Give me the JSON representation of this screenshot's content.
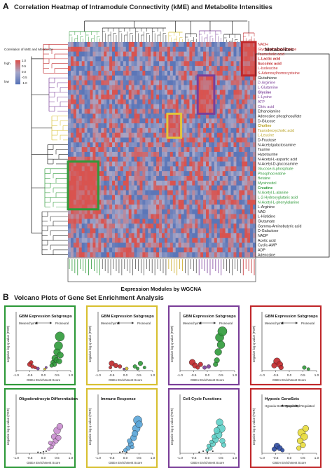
{
  "panel_a": {
    "label": "A",
    "title": "Correlation Heatmap of Intramodule Connectivity (kME) and Metabolite Intensities",
    "legend_title": "Correlation of kME and Metabolite",
    "legend_high": "high",
    "legend_low": "low",
    "legend_ticks": [
      "1.0",
      "0.5",
      "0.0",
      "-0.5",
      "-1.0"
    ],
    "metabolites_header": "Metabolites",
    "xlabel": "Expression Modules by WGCNA",
    "colors": {
      "red": "#c0282b",
      "purple": "#7b3f99",
      "yellow": "#d8c032",
      "green": "#2f9a3a",
      "heat_high": "#d9534f",
      "heat_low": "#5b76b8",
      "heat_mid": "#a7a8c9"
    }
  },
  "panel_b": {
    "label": "B",
    "title": "Volcano Plots of Gene Set Enrichment Analysis"
  },
  "chart_data": [
    {
      "type": "heatmap",
      "title": "Correlation Heatmap of Intramodule Connectivity (kME) and Metabolite Intensities",
      "xlabel": "Expression Modules by WGCNA",
      "rows": [
        {
          "name": "NADH",
          "group": "red"
        },
        {
          "name": "Glycerophosphocholine",
          "group": "red"
        },
        {
          "name": "Taurocholic acid",
          "group": "red"
        },
        {
          "name": "L-Lactic acid",
          "group": "red",
          "bold": true
        },
        {
          "name": "Succinic acid",
          "group": "red",
          "bold": true
        },
        {
          "name": "L-Isoleucine",
          "group": "red"
        },
        {
          "name": "S-Adenosylhomocysteine",
          "group": "red"
        },
        {
          "name": "Glutathione",
          "group": "none"
        },
        {
          "name": "D-Arginine",
          "group": "purple"
        },
        {
          "name": "L-Glutamine",
          "group": "purple"
        },
        {
          "name": "Glycine",
          "group": "purple",
          "bold": true
        },
        {
          "name": "L-Lysine",
          "group": "purple"
        },
        {
          "name": "ATP",
          "group": "purple"
        },
        {
          "name": "Citric acid",
          "group": "purple"
        },
        {
          "name": "Ethanolamine",
          "group": "none"
        },
        {
          "name": "Adenosine phosphosulfate",
          "group": "none"
        },
        {
          "name": "D-Glucose",
          "group": "none"
        },
        {
          "name": "Choline",
          "group": "yellow",
          "bold": true
        },
        {
          "name": "Taurodeoxycholic acid",
          "group": "yellow"
        },
        {
          "name": "L-Leucine",
          "group": "yellow"
        },
        {
          "name": "D-Fructose",
          "group": "none"
        },
        {
          "name": "N-Acetylgalactosamine",
          "group": "none"
        },
        {
          "name": "Taurine",
          "group": "none"
        },
        {
          "name": "Hypotaurine",
          "group": "none"
        },
        {
          "name": "N-Acetyl-L-aspartic acid",
          "group": "none"
        },
        {
          "name": "N-Acetyl-D-glucosamine",
          "group": "none"
        },
        {
          "name": "Glucose-6-phosphate",
          "group": "green"
        },
        {
          "name": "Phosphocreatine",
          "group": "green"
        },
        {
          "name": "Betaine",
          "group": "green"
        },
        {
          "name": "Myoinositol",
          "group": "green"
        },
        {
          "name": "Creatine",
          "group": "green",
          "bold": true
        },
        {
          "name": "N-Acetyl-L-alanine",
          "group": "green"
        },
        {
          "name": "L-2-Hydroxyglutaric acid",
          "group": "green"
        },
        {
          "name": "N-Acetyl-L-phenylalanine",
          "group": "green"
        },
        {
          "name": "L-Arginine",
          "group": "none"
        },
        {
          "name": "NAD",
          "group": "none"
        },
        {
          "name": "L-Histidine",
          "group": "none"
        },
        {
          "name": "Glutamate",
          "group": "none"
        },
        {
          "name": "Gamma-Aminobutyric acid",
          "group": "none"
        },
        {
          "name": "D-Galactose",
          "group": "none"
        },
        {
          "name": "NADP",
          "group": "none"
        },
        {
          "name": "Acetic acid",
          "group": "none"
        },
        {
          "name": "Cyclic-AMP",
          "group": "none"
        },
        {
          "name": "ADP",
          "group": "none"
        },
        {
          "name": "Adenosine",
          "group": "none"
        }
      ],
      "n_columns": 68,
      "value_range": [
        -1.0,
        1.0
      ],
      "highlight_boxes": [
        {
          "color": "red",
          "cols": [
            63,
            67
          ],
          "rows": [
            0,
            6
          ]
        },
        {
          "color": "purple",
          "cols": [
            47,
            52
          ],
          "rows": [
            7,
            14
          ]
        },
        {
          "color": "yellow",
          "cols": [
            36,
            40
          ],
          "rows": [
            15,
            19
          ]
        },
        {
          "color": "green",
          "cols": [
            0,
            10
          ],
          "rows": [
            25,
            34
          ]
        }
      ]
    },
    {
      "type": "scatter",
      "title": "GBM Expression Subgroups",
      "arrow_left": "Mesenchymal",
      "arrow_right": "Proneural",
      "frame_color": "#2f9a3a",
      "xlabel": "GSEA Enrichment Score",
      "ylabel": "negative log q-value (FDR)",
      "xlim": [
        -1.0,
        1.0
      ],
      "xticks": [
        "-1.0",
        "-0.5",
        "0.0",
        "0.5",
        "1.0"
      ],
      "series": [
        {
          "color": "#2f9a3a",
          "points": [
            [
              0.35,
              0.8,
              6
            ],
            [
              0.42,
              1.2,
              8
            ],
            [
              0.5,
              1.8,
              9
            ],
            [
              0.55,
              2.4,
              11
            ],
            [
              0.6,
              3.3,
              12
            ],
            [
              0.48,
              1.0,
              7
            ],
            [
              0.4,
              0.6,
              6
            ],
            [
              0.62,
              1.5,
              8
            ],
            [
              0.3,
              0.5,
              5
            ],
            [
              0.58,
              0.9,
              7
            ]
          ]
        },
        {
          "color": "#c0282b",
          "points": [
            [
              -0.5,
              0.6,
              6
            ],
            [
              -0.4,
              0.4,
              5
            ],
            [
              -0.3,
              0.3,
              4
            ],
            [
              -0.45,
              0.8,
              5
            ]
          ]
        },
        {
          "color": "#7b3f99",
          "points": [
            [
              -0.2,
              0.2,
              4
            ],
            [
              0.1,
              0.3,
              3
            ]
          ]
        },
        {
          "color": "#d8c032",
          "points": [
            [
              0.05,
              0.15,
              3
            ]
          ]
        }
      ]
    },
    {
      "type": "scatter",
      "title": "GBM Expression Subgroups",
      "arrow_left": "Mesenchymal",
      "arrow_right": "Proneural",
      "frame_color": "#d8c032",
      "xlabel": "GSEA Enrichment Score",
      "ylabel": "negative log q-value (FDR)",
      "xlim": [
        -1.0,
        1.0
      ],
      "xticks": [
        "-1.0",
        "-0.5",
        "0.0",
        "0.5",
        "1.0"
      ],
      "series": [
        {
          "color": "#c0282b",
          "points": [
            [
              -0.5,
              0.7,
              7
            ],
            [
              -0.35,
              0.5,
              6
            ],
            [
              -0.2,
              0.4,
              5
            ],
            [
              -0.55,
              0.3,
              4
            ]
          ]
        },
        {
          "color": "#2f9a3a",
          "points": [
            [
              0.35,
              0.4,
              5
            ],
            [
              0.55,
              0.7,
              6
            ],
            [
              0.7,
              0.3,
              4
            ],
            [
              0.45,
              0.2,
              4
            ]
          ]
        },
        {
          "color": "#d8c032",
          "points": [
            [
              0.05,
              0.2,
              4
            ]
          ]
        },
        {
          "color": "#7b3f99",
          "points": [
            [
              -0.05,
              0.15,
              3
            ]
          ]
        }
      ]
    },
    {
      "type": "scatter",
      "title": "GBM Expression Subgroups",
      "arrow_left": "Mesenchymal",
      "arrow_right": "Proneural",
      "frame_color": "#7b3f99",
      "xlabel": "GSEA Enrichment Score",
      "ylabel": "negative log q-value (FDR)",
      "xlim": [
        -1.0,
        1.0
      ],
      "xticks": [
        "-1.0",
        "-0.5",
        "0.0",
        "0.5",
        "1.0"
      ],
      "series": [
        {
          "color": "#2f9a3a",
          "points": [
            [
              0.45,
              3.2,
              11
            ],
            [
              0.55,
              3.8,
              12
            ],
            [
              0.4,
              1.8,
              9
            ],
            [
              0.5,
              2.5,
              10
            ],
            [
              0.35,
              1.0,
              7
            ],
            [
              0.3,
              0.6,
              6
            ]
          ]
        },
        {
          "color": "#c0282b",
          "points": [
            [
              -0.55,
              0.8,
              8
            ],
            [
              -0.45,
              0.5,
              7
            ],
            [
              -0.35,
              0.3,
              5
            ],
            [
              -0.25,
              0.6,
              6
            ]
          ]
        },
        {
          "color": "#7b3f99",
          "points": [
            [
              -0.1,
              0.3,
              5
            ],
            [
              0.05,
              0.4,
              5
            ]
          ]
        }
      ]
    },
    {
      "type": "scatter",
      "title": "GBM Expression Subgroups",
      "arrow_left": "Mesenchymal",
      "arrow_right": "Proneural",
      "frame_color": "#c0282b",
      "xlabel": "GSEA Enrichment Score",
      "ylabel": "negative log q-value (FDR)",
      "xlim": [
        -1.0,
        1.0
      ],
      "xticks": [
        "-1.0",
        "-0.5",
        "0.0",
        "0.5",
        "1.0"
      ],
      "series": [
        {
          "color": "#c0282b",
          "points": [
            [
              -0.45,
              0.9,
              9
            ],
            [
              -0.35,
              0.6,
              8
            ],
            [
              -0.55,
              0.5,
              7
            ],
            [
              -0.3,
              0.3,
              6
            ]
          ]
        },
        {
          "color": "#2f9a3a",
          "points": [
            [
              0.55,
              0.3,
              5
            ],
            [
              0.7,
              0.15,
              4
            ]
          ]
        }
      ]
    },
    {
      "type": "scatter",
      "title": "Oligodendrocyte Differentiation",
      "frame_color": "#2f9a3a",
      "xlabel": "GSEA Enrichment Score",
      "ylabel": "negative log q-value (FDR)",
      "xlim": [
        -1.0,
        1.0
      ],
      "xticks": [
        "-1.0",
        "-0.5",
        "0.0",
        "0.5",
        "1.0"
      ],
      "series": [
        {
          "color": "#c98ecf",
          "points": [
            [
              0.4,
              1.6,
              8
            ],
            [
              0.5,
              2.2,
              9
            ],
            [
              0.45,
              1.2,
              7
            ],
            [
              0.35,
              0.9,
              6
            ],
            [
              0.55,
              1.5,
              7
            ],
            [
              0.3,
              0.6,
              5
            ],
            [
              0.2,
              0.4,
              4
            ],
            [
              0.6,
              2.6,
              8
            ],
            [
              0.25,
              1.0,
              5
            ]
          ]
        },
        {
          "color": "#222",
          "points": [
            [
              -0.2,
              0.1,
              1.5
            ],
            [
              0.0,
              0.15,
              1.5
            ],
            [
              0.1,
              0.2,
              1.5
            ],
            [
              -0.1,
              0.05,
              1.5
            ]
          ]
        }
      ]
    },
    {
      "type": "scatter",
      "title": "Immune Response",
      "frame_color": "#d8c032",
      "xlabel": "GSEA Enrichment Score",
      "ylabel": "negative log q-value (FDR)",
      "xlim": [
        -1.0,
        1.0
      ],
      "xticks": [
        "-1.0",
        "-0.5",
        "0.0",
        "0.5",
        "1.0"
      ],
      "series": [
        {
          "color": "#5aa5d8",
          "points": [
            [
              0.3,
              1.5,
              8
            ],
            [
              0.4,
              2.4,
              10
            ],
            [
              0.45,
              3.2,
              11
            ],
            [
              0.2,
              0.9,
              7
            ],
            [
              0.1,
              0.5,
              6
            ],
            [
              0.35,
              1.9,
              8
            ],
            [
              0.5,
              2.8,
              9
            ],
            [
              0.0,
              0.3,
              5
            ],
            [
              0.15,
              1.2,
              6
            ],
            [
              0.25,
              0.6,
              5
            ]
          ]
        },
        {
          "color": "#222",
          "points": [
            [
              -0.2,
              0.1,
              1.5
            ],
            [
              -0.1,
              0.15,
              1.5
            ],
            [
              0.05,
              0.1,
              1.5
            ]
          ]
        }
      ]
    },
    {
      "type": "scatter",
      "title": "Cell-Cycle Functions",
      "frame_color": "#7b3f99",
      "xlabel": "GSEA Enrichment Score",
      "ylabel": "negative log q-value (FDR)",
      "xlim": [
        -1.0,
        1.0
      ],
      "xticks": [
        "-1.0",
        "-0.5",
        "0.0",
        "0.5",
        "1.0"
      ],
      "series": [
        {
          "color": "#5fd0c8",
          "points": [
            [
              0.5,
              2.4,
              11
            ],
            [
              0.4,
              1.8,
              10
            ],
            [
              0.3,
              1.3,
              8
            ],
            [
              0.2,
              0.9,
              7
            ],
            [
              0.1,
              0.5,
              6
            ],
            [
              0.45,
              3.0,
              9
            ],
            [
              0.35,
              2.2,
              8
            ],
            [
              0.25,
              1.6,
              6
            ],
            [
              0.15,
              1.1,
              5
            ],
            [
              0.05,
              0.7,
              5
            ],
            [
              0.0,
              0.3,
              4
            ],
            [
              0.55,
              1.2,
              7
            ],
            [
              0.6,
              0.8,
              6
            ]
          ]
        },
        {
          "color": "#222",
          "points": [
            [
              -0.3,
              0.1,
              1.5
            ],
            [
              -0.15,
              0.2,
              1.5
            ],
            [
              0.0,
              0.1,
              1.5
            ],
            [
              0.2,
              0.2,
              1.5
            ]
          ]
        }
      ]
    },
    {
      "type": "scatter",
      "title": "Hypoxic GeneSets",
      "arrow_left": "Hypoxia Down-Regulated",
      "arrow_right": "Hypoxia Up-Regulated",
      "frame_color": "#c0282b",
      "xlabel": "GSEA Enrichment Score",
      "ylabel": "negative log q-value (FDR)",
      "xlim": [
        -1.0,
        1.0
      ],
      "xticks": [
        "-1.0",
        "-0.5",
        "0.0",
        "0.5",
        "1.0"
      ],
      "series": [
        {
          "color": "#e8dc3a",
          "points": [
            [
              0.45,
              2.0,
              10
            ],
            [
              0.55,
              1.6,
              9
            ],
            [
              0.4,
              1.2,
              8
            ],
            [
              0.5,
              0.8,
              7
            ],
            [
              0.35,
              0.5,
              6
            ],
            [
              0.6,
              2.4,
              8
            ]
          ]
        },
        {
          "color": "#2c4aa0",
          "points": [
            [
              -0.45,
              0.7,
              8
            ],
            [
              -0.35,
              0.5,
              7
            ],
            [
              -0.55,
              0.4,
              6
            ],
            [
              -0.25,
              0.3,
              5
            ]
          ]
        }
      ]
    }
  ]
}
